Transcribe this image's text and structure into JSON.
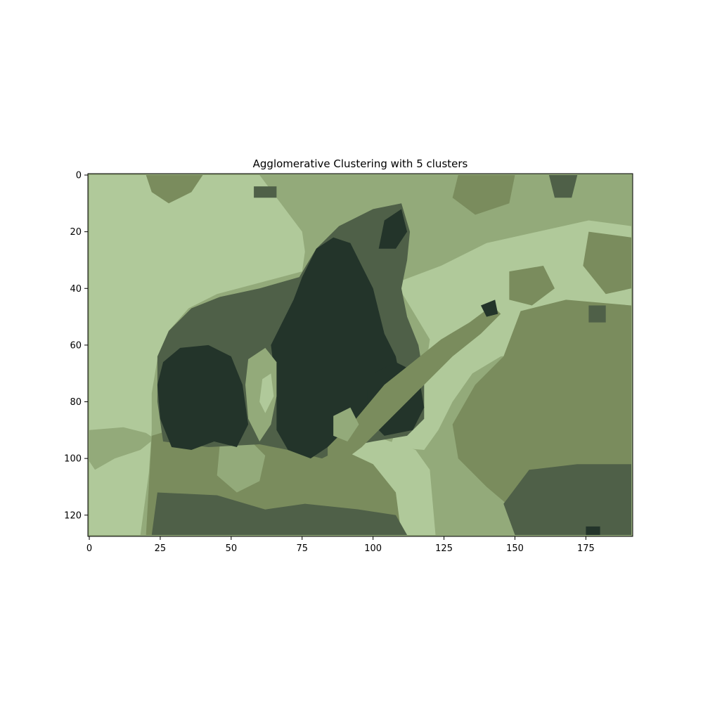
{
  "chart_data": {
    "type": "heatmap",
    "title": "Agglomerative Clustering with 5 clusters",
    "image_size": {
      "width": 192,
      "height": 128
    },
    "xlim": [
      -0.5,
      191.5
    ],
    "ylim": [
      127.5,
      -0.5
    ],
    "x_ticks": [
      0,
      25,
      50,
      75,
      100,
      125,
      150,
      175
    ],
    "y_ticks": [
      0,
      20,
      40,
      60,
      80,
      100,
      120
    ],
    "x_tick_labels": [
      "0",
      "25",
      "50",
      "75",
      "100",
      "125",
      "150",
      "175"
    ],
    "y_tick_labels": [
      "0",
      "20",
      "40",
      "60",
      "80",
      "100",
      "120"
    ],
    "grid": false,
    "cluster_count": 5,
    "cluster_colors": [
      "#b0c99a",
      "#93aa7a",
      "#7a8c5d",
      "#4f6048",
      "#23342a"
    ],
    "regions": [
      {
        "cluster": 0,
        "points": [
          [
            0,
            0
          ],
          [
            60,
            0
          ],
          [
            75,
            20
          ],
          [
            76,
            27
          ],
          [
            75,
            34
          ],
          [
            60,
            38
          ],
          [
            45,
            42
          ],
          [
            35,
            47
          ],
          [
            28,
            55
          ],
          [
            24,
            65
          ],
          [
            22,
            77
          ],
          [
            22,
            90
          ],
          [
            21,
            105
          ],
          [
            18,
            127
          ],
          [
            0,
            127
          ]
        ]
      },
      {
        "cluster": 1,
        "points": [
          [
            0,
            90
          ],
          [
            12,
            89
          ],
          [
            20,
            91
          ],
          [
            23,
            93
          ],
          [
            18,
            97
          ],
          [
            9,
            100
          ],
          [
            2,
            104
          ],
          [
            0,
            101
          ]
        ]
      },
      {
        "cluster": 0,
        "points": [
          [
            108,
            38
          ],
          [
            124,
            32
          ],
          [
            140,
            24
          ],
          [
            158,
            20
          ],
          [
            176,
            16
          ],
          [
            191,
            18
          ],
          [
            191,
            56
          ],
          [
            178,
            60
          ],
          [
            160,
            62
          ],
          [
            145,
            64
          ],
          [
            135,
            70
          ],
          [
            128,
            80
          ],
          [
            123,
            90
          ],
          [
            118,
            97
          ],
          [
            106,
            96
          ],
          [
            110,
            84
          ],
          [
            118,
            72
          ],
          [
            120,
            58
          ],
          [
            114,
            48
          ]
        ]
      },
      {
        "cluster": 2,
        "points": [
          [
            152,
            48
          ],
          [
            168,
            44
          ],
          [
            191,
            46
          ],
          [
            191,
            127
          ],
          [
            160,
            127
          ],
          [
            140,
            110
          ],
          [
            130,
            100
          ],
          [
            128,
            88
          ],
          [
            136,
            74
          ],
          [
            146,
            64
          ]
        ]
      },
      {
        "cluster": 3,
        "points": [
          [
            155,
            104
          ],
          [
            172,
            102
          ],
          [
            191,
            102
          ],
          [
            191,
            127
          ],
          [
            150,
            127
          ],
          [
            146,
            116
          ]
        ]
      },
      {
        "cluster": 0,
        "points": [
          [
            86,
            97
          ],
          [
            100,
            92
          ],
          [
            115,
            97
          ],
          [
            120,
            104
          ],
          [
            122,
            127
          ],
          [
            104,
            127
          ],
          [
            94,
            120
          ],
          [
            84,
            112
          ],
          [
            82,
            104
          ]
        ]
      },
      {
        "cluster": 2,
        "points": [
          [
            22,
            92
          ],
          [
            35,
            88
          ],
          [
            60,
            90
          ],
          [
            85,
            95
          ],
          [
            100,
            102
          ],
          [
            108,
            112
          ],
          [
            110,
            127
          ],
          [
            20,
            127
          ]
        ]
      },
      {
        "cluster": 3,
        "points": [
          [
            24,
            112
          ],
          [
            45,
            113
          ],
          [
            62,
            118
          ],
          [
            76,
            116
          ],
          [
            95,
            118
          ],
          [
            108,
            120
          ],
          [
            112,
            127
          ],
          [
            22,
            127
          ]
        ]
      },
      {
        "cluster": 1,
        "points": [
          [
            46,
            95
          ],
          [
            55,
            92
          ],
          [
            62,
            99
          ],
          [
            60,
            108
          ],
          [
            52,
            112
          ],
          [
            45,
            106
          ]
        ]
      },
      {
        "cluster": 3,
        "points": [
          [
            24,
            64
          ],
          [
            28,
            55
          ],
          [
            36,
            47
          ],
          [
            46,
            43
          ],
          [
            60,
            40
          ],
          [
            74,
            36
          ],
          [
            80,
            26
          ],
          [
            88,
            18
          ],
          [
            100,
            12
          ],
          [
            110,
            10
          ],
          [
            113,
            20
          ],
          [
            112,
            30
          ],
          [
            110,
            40
          ],
          [
            112,
            50
          ],
          [
            116,
            60
          ],
          [
            118,
            72
          ],
          [
            118,
            86
          ],
          [
            112,
            92
          ],
          [
            100,
            94
          ],
          [
            90,
            96
          ],
          [
            82,
            100
          ],
          [
            70,
            97
          ],
          [
            60,
            95
          ],
          [
            42,
            96
          ],
          [
            34,
            95
          ],
          [
            26,
            94
          ],
          [
            24,
            80
          ]
        ]
      },
      {
        "cluster": 4,
        "points": [
          [
            26,
            66
          ],
          [
            32,
            61
          ],
          [
            42,
            60
          ],
          [
            50,
            64
          ],
          [
            54,
            74
          ],
          [
            56,
            88
          ],
          [
            52,
            96
          ],
          [
            44,
            94
          ],
          [
            36,
            97
          ],
          [
            29,
            96
          ],
          [
            25,
            86
          ],
          [
            24,
            74
          ]
        ]
      },
      {
        "cluster": 4,
        "points": [
          [
            64,
            60
          ],
          [
            68,
            52
          ],
          [
            72,
            44
          ],
          [
            75,
            36
          ],
          [
            80,
            26
          ],
          [
            86,
            22
          ],
          [
            92,
            24
          ],
          [
            96,
            32
          ],
          [
            100,
            40
          ],
          [
            102,
            48
          ],
          [
            104,
            56
          ],
          [
            108,
            64
          ],
          [
            110,
            74
          ],
          [
            110,
            84
          ],
          [
            104,
            88
          ],
          [
            96,
            86
          ],
          [
            90,
            90
          ],
          [
            84,
            96
          ],
          [
            78,
            100
          ],
          [
            70,
            97
          ],
          [
            66,
            90
          ],
          [
            66,
            78
          ],
          [
            65,
            68
          ]
        ]
      },
      {
        "cluster": 4,
        "points": [
          [
            104,
            16
          ],
          [
            110,
            12
          ],
          [
            112,
            20
          ],
          [
            108,
            26
          ],
          [
            102,
            26
          ]
        ]
      },
      {
        "cluster": 4,
        "points": [
          [
            100,
            70
          ],
          [
            108,
            66
          ],
          [
            116,
            70
          ],
          [
            118,
            82
          ],
          [
            114,
            90
          ],
          [
            104,
            92
          ],
          [
            98,
            86
          ],
          [
            98,
            76
          ]
        ]
      },
      {
        "cluster": 1,
        "points": [
          [
            56,
            65
          ],
          [
            62,
            61
          ],
          [
            66,
            66
          ],
          [
            66,
            78
          ],
          [
            64,
            88
          ],
          [
            60,
            94
          ],
          [
            56,
            86
          ],
          [
            55,
            74
          ]
        ]
      },
      {
        "cluster": 0,
        "points": [
          [
            61,
            72
          ],
          [
            64,
            70
          ],
          [
            65,
            78
          ],
          [
            62,
            84
          ],
          [
            60,
            80
          ]
        ]
      },
      {
        "cluster": 2,
        "points": [
          [
            84,
            96
          ],
          [
            94,
            86
          ],
          [
            104,
            74
          ],
          [
            114,
            66
          ],
          [
            124,
            58
          ],
          [
            134,
            52
          ],
          [
            142,
            46
          ],
          [
            145,
            49
          ],
          [
            138,
            56
          ],
          [
            128,
            64
          ],
          [
            120,
            72
          ],
          [
            112,
            80
          ],
          [
            104,
            88
          ],
          [
            96,
            96
          ],
          [
            88,
            102
          ],
          [
            84,
            100
          ]
        ]
      },
      {
        "cluster": 1,
        "points": [
          [
            86,
            85
          ],
          [
            92,
            82
          ],
          [
            95,
            88
          ],
          [
            91,
            94
          ],
          [
            86,
            92
          ]
        ]
      },
      {
        "cluster": 4,
        "points": [
          [
            138,
            46
          ],
          [
            143,
            44
          ],
          [
            144,
            49
          ],
          [
            140,
            50
          ]
        ]
      },
      {
        "cluster": 2,
        "points": [
          [
            20,
            0
          ],
          [
            40,
            0
          ],
          [
            36,
            6
          ],
          [
            28,
            10
          ],
          [
            22,
            6
          ]
        ]
      },
      {
        "cluster": 3,
        "points": [
          [
            58,
            4
          ],
          [
            66,
            4
          ],
          [
            66,
            8
          ],
          [
            58,
            8
          ]
        ]
      },
      {
        "cluster": 2,
        "points": [
          [
            130,
            0
          ],
          [
            150,
            0
          ],
          [
            148,
            10
          ],
          [
            136,
            14
          ],
          [
            128,
            8
          ]
        ]
      },
      {
        "cluster": 3,
        "points": [
          [
            162,
            0
          ],
          [
            172,
            0
          ],
          [
            170,
            8
          ],
          [
            164,
            8
          ]
        ]
      },
      {
        "cluster": 2,
        "points": [
          [
            176,
            20
          ],
          [
            191,
            22
          ],
          [
            191,
            40
          ],
          [
            182,
            42
          ],
          [
            174,
            32
          ]
        ]
      },
      {
        "cluster": 3,
        "points": [
          [
            176,
            46
          ],
          [
            182,
            46
          ],
          [
            182,
            52
          ],
          [
            176,
            52
          ]
        ]
      },
      {
        "cluster": 2,
        "points": [
          [
            148,
            34
          ],
          [
            160,
            32
          ],
          [
            164,
            40
          ],
          [
            156,
            46
          ],
          [
            148,
            44
          ]
        ]
      },
      {
        "cluster": 4,
        "points": [
          [
            175,
            124
          ],
          [
            180,
            124
          ],
          [
            180,
            127
          ],
          [
            175,
            127
          ]
        ]
      }
    ]
  }
}
